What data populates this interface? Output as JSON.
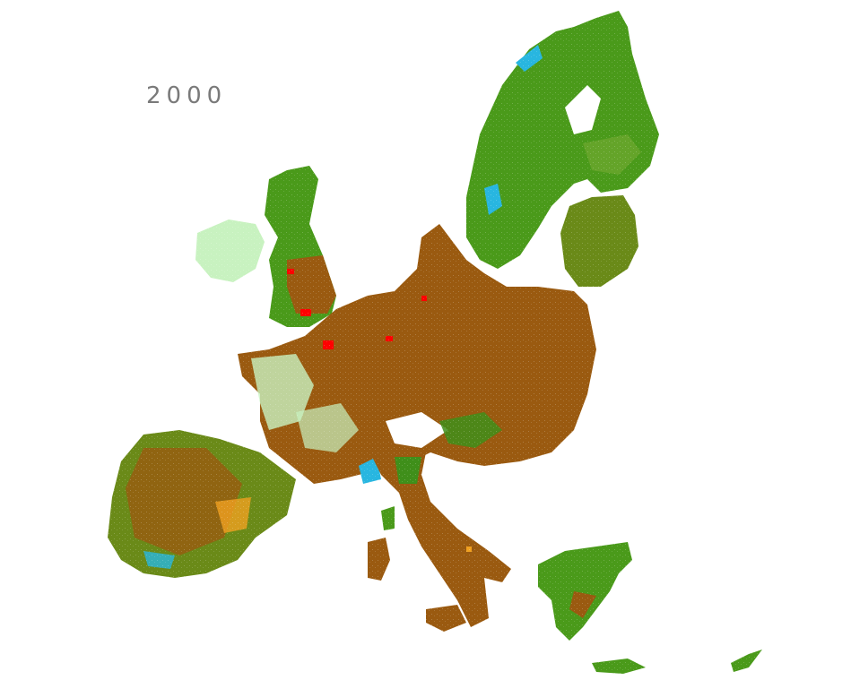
{
  "map": {
    "year": "2000",
    "colors": {
      "forest": "#3f8f1a",
      "cropland": "#9a5a10",
      "grassland": "#c8f2c0",
      "urban": "#ff0000",
      "water_wetland": "#28b6e0",
      "shrubland": "#f0a020",
      "bare": "#a8b8d0"
    }
  }
}
